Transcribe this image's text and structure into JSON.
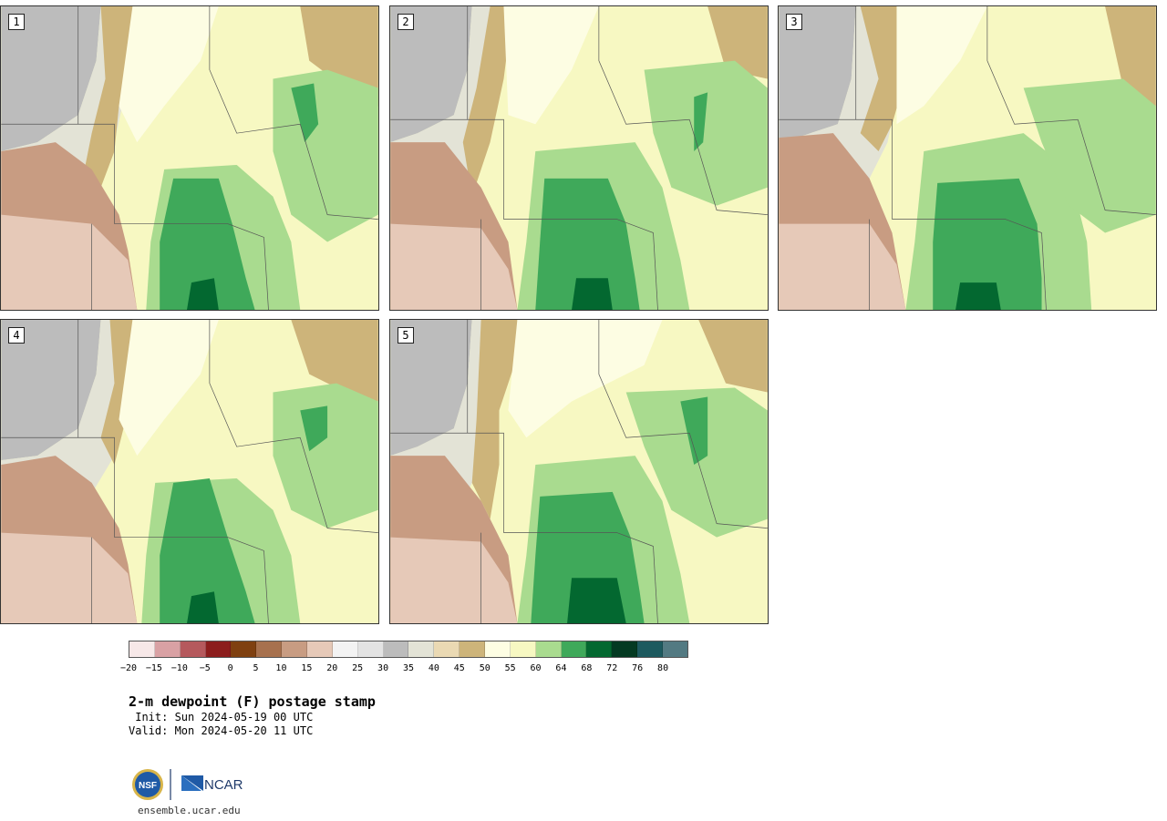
{
  "panels": [
    {
      "label": "1"
    },
    {
      "label": "2"
    },
    {
      "label": "3"
    },
    {
      "label": "4"
    },
    {
      "label": "5"
    }
  ],
  "colorbar": {
    "colors": [
      "#f7e8e8",
      "#d9a1a4",
      "#b5595d",
      "#8c1d1d",
      "#7f4010",
      "#a7714e",
      "#c89c82",
      "#e6c9b8",
      "#f3f3f3",
      "#e3e3e3",
      "#bcbcbc",
      "#e3e3d6",
      "#ead9b3",
      "#cdb47a",
      "#fdfde3",
      "#f7f8c2",
      "#a9db8f",
      "#3fa95a",
      "#036830",
      "#043a22",
      "#1d5a5f",
      "#537a82"
    ],
    "ticks": [
      "−20",
      "−15",
      "−10",
      "−5",
      "0",
      "5",
      "10",
      "15",
      "20",
      "25",
      "30",
      "35",
      "40",
      "45",
      "50",
      "55",
      "60",
      "64",
      "68",
      "72",
      "76",
      "80"
    ]
  },
  "title": "2-m dewpoint (F) postage stamp",
  "init": " Init: Sun 2024-05-19 00 UTC",
  "valid": "Valid: Mon 2024-05-20 11 UTC",
  "footer": {
    "nsf_logo": "NSF",
    "ncar_logo": "NCAR",
    "url": "ensemble.ucar.edu"
  }
}
